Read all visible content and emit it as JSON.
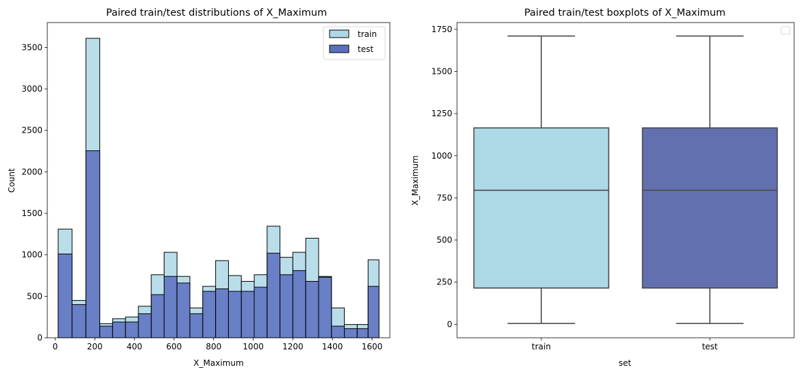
{
  "chart_data": [
    {
      "type": "bar",
      "title": "Paired train/test distributions of X_Maximum",
      "xlabel": "X_Maximum",
      "ylabel": "Count",
      "xlim": [
        -40,
        1690
      ],
      "ylim": [
        0,
        3800
      ],
      "xticks": [
        0,
        200,
        400,
        600,
        800,
        1000,
        1200,
        1400,
        1600
      ],
      "yticks": [
        0,
        500,
        1000,
        1500,
        2000,
        2500,
        3000,
        3500
      ],
      "legend_position": "top-right",
      "grid": false,
      "colors": {
        "train": "#add8e6",
        "test": "#5b6fbf"
      },
      "series": [
        {
          "name": "train",
          "bins": [
            [
              15,
              85,
              1310
            ],
            [
              85,
              155,
              450
            ],
            [
              155,
              225,
              3610
            ],
            [
              225,
              290,
              170
            ],
            [
              290,
              355,
              230
            ],
            [
              355,
              420,
              250
            ],
            [
              420,
              485,
              380
            ],
            [
              485,
              550,
              760
            ],
            [
              550,
              615,
              1030
            ],
            [
              615,
              680,
              740
            ],
            [
              680,
              745,
              360
            ],
            [
              745,
              810,
              620
            ],
            [
              810,
              875,
              930
            ],
            [
              875,
              940,
              750
            ],
            [
              940,
              1005,
              680
            ],
            [
              1005,
              1070,
              760
            ],
            [
              1070,
              1135,
              1345
            ],
            [
              1135,
              1200,
              970
            ],
            [
              1200,
              1265,
              1030
            ],
            [
              1265,
              1330,
              1200
            ],
            [
              1330,
              1395,
              740
            ],
            [
              1395,
              1460,
              360
            ],
            [
              1460,
              1525,
              160
            ],
            [
              1525,
              1580,
              160
            ],
            [
              1580,
              1635,
              940
            ]
          ]
        },
        {
          "name": "test",
          "bins": [
            [
              15,
              85,
              1010
            ],
            [
              85,
              155,
              400
            ],
            [
              155,
              225,
              2255
            ],
            [
              225,
              290,
              140
            ],
            [
              290,
              355,
              190
            ],
            [
              355,
              420,
              190
            ],
            [
              420,
              485,
              290
            ],
            [
              485,
              550,
              520
            ],
            [
              550,
              615,
              740
            ],
            [
              615,
              680,
              660
            ],
            [
              680,
              745,
              290
            ],
            [
              745,
              810,
              560
            ],
            [
              810,
              875,
              590
            ],
            [
              875,
              940,
              560
            ],
            [
              940,
              1005,
              560
            ],
            [
              1005,
              1070,
              610
            ],
            [
              1070,
              1135,
              1020
            ],
            [
              1135,
              1200,
              760
            ],
            [
              1200,
              1265,
              810
            ],
            [
              1265,
              1330,
              680
            ],
            [
              1330,
              1395,
              730
            ],
            [
              1395,
              1460,
              140
            ],
            [
              1460,
              1525,
              110
            ],
            [
              1525,
              1580,
              110
            ],
            [
              1580,
              1635,
              620
            ]
          ]
        }
      ]
    },
    {
      "type": "box",
      "title": "Paired train/test boxplots of X_Maximum",
      "xlabel": "set",
      "ylabel": "X_Maximum",
      "categories": [
        "train",
        "test"
      ],
      "ylim": [
        -80,
        1790
      ],
      "yticks": [
        0,
        250,
        500,
        750,
        1000,
        1250,
        1500,
        1750
      ],
      "legend_position": "top-right",
      "grid": false,
      "colors": {
        "train": "#add8e6",
        "test": "#6270b0"
      },
      "boxes": [
        {
          "name": "train",
          "whisker_low": 5,
          "q1": 215,
          "median": 795,
          "q3": 1165,
          "whisker_high": 1710
        },
        {
          "name": "test",
          "whisker_low": 5,
          "q1": 215,
          "median": 795,
          "q3": 1165,
          "whisker_high": 1710
        }
      ]
    }
  ]
}
